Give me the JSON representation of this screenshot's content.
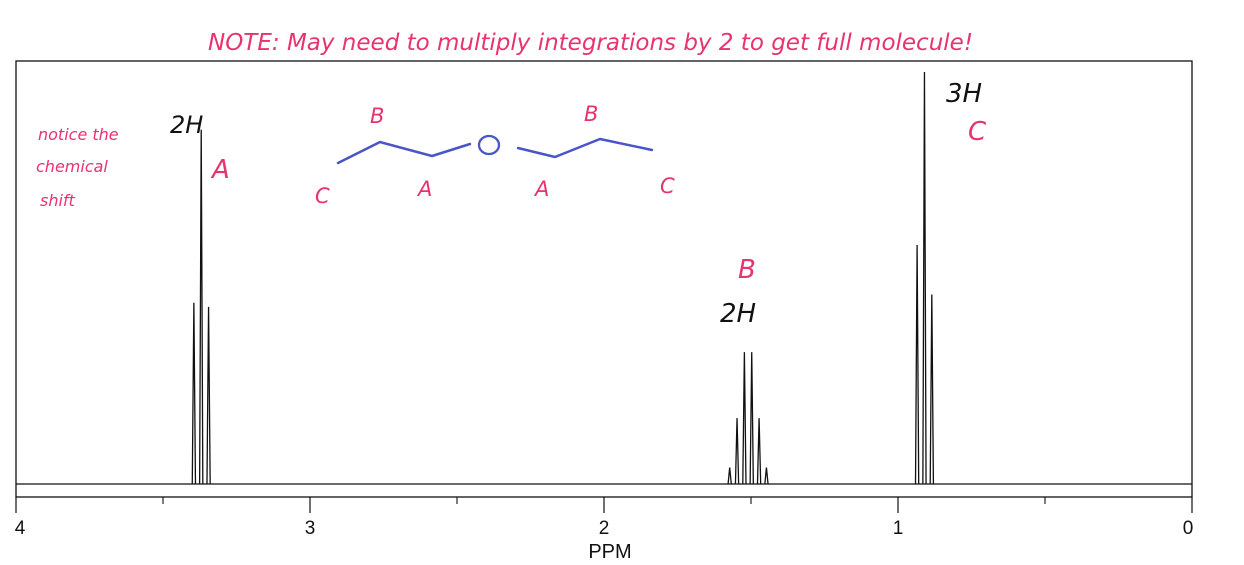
{
  "chart_data": {
    "type": "line",
    "title": "",
    "xlabel": "PPM",
    "ylabel": "",
    "xlim": [
      4,
      0
    ],
    "x_ticks": [
      4,
      3,
      2,
      1,
      0
    ],
    "x_minor_ticks": [
      3.5,
      2.5,
      1.5,
      0.5
    ],
    "grid": false,
    "series": [
      {
        "peaks": [
          {
            "label": "A",
            "multiplicity": "triplet",
            "center_ppm": 3.37,
            "coupling_ppm": 0.025,
            "line_heights": [
              0.44,
              0.86,
              0.43
            ]
          },
          {
            "label": "B",
            "multiplicity": "sextet",
            "center_ppm": 1.51,
            "coupling_ppm": 0.025,
            "line_heights": [
              0.04,
              0.16,
              0.32,
              0.32,
              0.16,
              0.04
            ]
          },
          {
            "label": "C",
            "multiplicity": "triplet",
            "center_ppm": 0.91,
            "coupling_ppm": 0.025,
            "line_heights": [
              0.58,
              1.0,
              0.46
            ]
          }
        ]
      }
    ],
    "annotations": {
      "note": "NOTE: May need to multiply integrations by 2 to get full molecule!",
      "side_note": [
        "notice the",
        "chemical",
        "shift"
      ],
      "peak_a_integration": "2H",
      "peak_a_label": "A",
      "peak_b_label": "B",
      "peak_b_integration": "2H",
      "peak_c_integration": "3H",
      "peak_c_label": "C",
      "molecule_labels": {
        "left_c": "C",
        "left_b": "B",
        "left_a": "A",
        "oxygen": "O",
        "right_a": "A",
        "right_b": "B",
        "right_c": "C"
      }
    }
  },
  "colors": {
    "spectrum": "#111111",
    "annotation_red": "#e8336d",
    "annotation_black": "#111111",
    "molecule": "#4a55c8"
  }
}
